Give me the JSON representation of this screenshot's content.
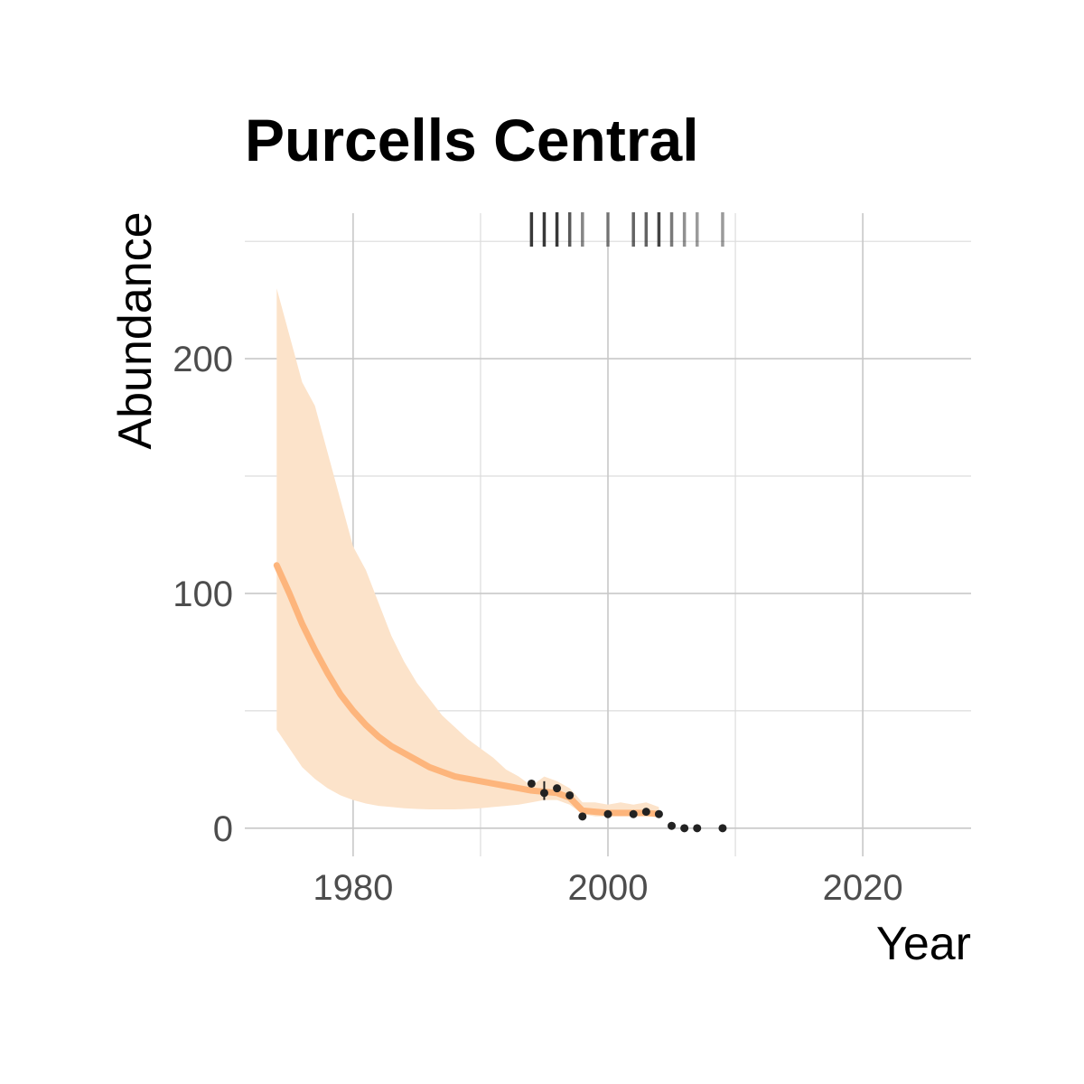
{
  "chart_data": {
    "type": "line",
    "title": "Purcells Central",
    "xlabel": "Year",
    "ylabel": "Abundance",
    "xlim": [
      1971.5,
      2028.5
    ],
    "ylim": [
      -12,
      262
    ],
    "x_ticks": [
      1980,
      2000,
      2020
    ],
    "y_ticks": [
      0,
      100,
      200
    ],
    "x_minor": [
      1970,
      1990,
      2010
    ],
    "y_minor": [
      50,
      150,
      250
    ],
    "grid": true,
    "colors": {
      "ribbon": "#fce3ca",
      "line": "#fdb57c",
      "points": "#222222",
      "rug": "#222222"
    },
    "trend": {
      "x": [
        1974,
        1975,
        1976,
        1977,
        1978,
        1979,
        1980,
        1981,
        1982,
        1983,
        1984,
        1985,
        1986,
        1987,
        1988,
        1989,
        1990,
        1991,
        1992,
        1993,
        1994,
        1995,
        1996,
        1997,
        1998,
        1999,
        2000,
        2001,
        2002,
        2003,
        2004
      ],
      "y": [
        112,
        100,
        87,
        76,
        66,
        57,
        50,
        44,
        39,
        35,
        32,
        29,
        26,
        24,
        22,
        21,
        20,
        19,
        18,
        17,
        16,
        15.5,
        15,
        13,
        7.5,
        7,
        6.5,
        6.5,
        6.5,
        6.5,
        6
      ],
      "lower": [
        42,
        34,
        26,
        21,
        17,
        14,
        12,
        10.5,
        9.5,
        9,
        8.5,
        8.2,
        8,
        8,
        8,
        8.2,
        8.5,
        9,
        9.5,
        10,
        11,
        12,
        12,
        10,
        6,
        5,
        5,
        5,
        5,
        5,
        5
      ],
      "upper": [
        230,
        210,
        190,
        180,
        160,
        140,
        120,
        110,
        96,
        82,
        71,
        62,
        55,
        48,
        43,
        38,
        34,
        30,
        25,
        22,
        18,
        22,
        20,
        17,
        11,
        11,
        10,
        11,
        10,
        11,
        9
      ]
    },
    "points": [
      {
        "x": 1994,
        "y": 19
      },
      {
        "x": 1995,
        "y": 15,
        "lo": 12,
        "hi": 20
      },
      {
        "x": 1996,
        "y": 17
      },
      {
        "x": 1997,
        "y": 14
      },
      {
        "x": 1998,
        "y": 5
      },
      {
        "x": 2000,
        "y": 6
      },
      {
        "x": 2002,
        "y": 6
      },
      {
        "x": 2003,
        "y": 7
      },
      {
        "x": 2004,
        "y": 6
      },
      {
        "x": 2005,
        "y": 1
      },
      {
        "x": 2006,
        "y": 0
      },
      {
        "x": 2007,
        "y": 0
      },
      {
        "x": 2009,
        "y": 0
      }
    ],
    "rug": [
      {
        "x": 1994,
        "alpha": 0.9
      },
      {
        "x": 1995,
        "alpha": 0.9
      },
      {
        "x": 1996,
        "alpha": 0.9
      },
      {
        "x": 1997,
        "alpha": 0.75
      },
      {
        "x": 1998,
        "alpha": 0.55
      },
      {
        "x": 2000,
        "alpha": 0.55
      },
      {
        "x": 2002,
        "alpha": 0.7
      },
      {
        "x": 2003,
        "alpha": 0.7
      },
      {
        "x": 2004,
        "alpha": 0.85
      },
      {
        "x": 2005,
        "alpha": 0.6
      },
      {
        "x": 2006,
        "alpha": 0.5
      },
      {
        "x": 2007,
        "alpha": 0.45
      },
      {
        "x": 2009,
        "alpha": 0.45
      }
    ]
  }
}
